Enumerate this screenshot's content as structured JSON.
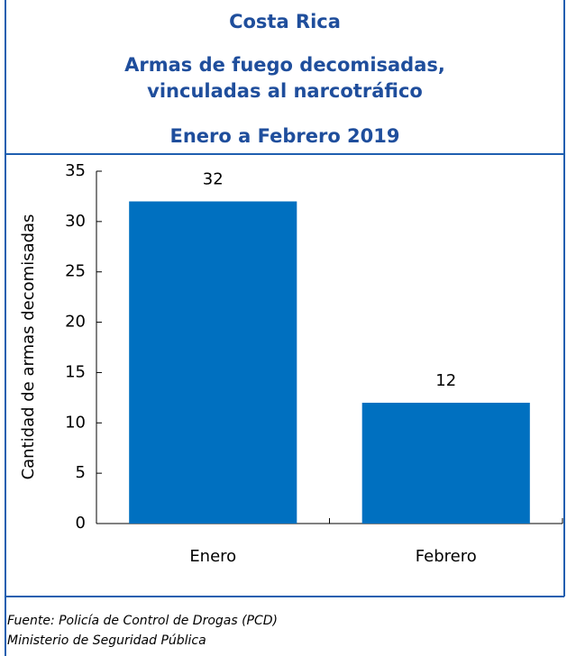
{
  "chart_data": {
    "type": "bar",
    "title": "Costa Rica",
    "subtitle": [
      "Armas de fuego decomisadas,",
      "vinculadas al narcotráfico",
      "Enero a Febrero 2019"
    ],
    "y_label": "Cantidad de armas decomisadas",
    "categories": [
      "Enero",
      "Febrero"
    ],
    "values": [
      32,
      12
    ],
    "color": "#0070c0",
    "ylim": [
      0,
      35
    ],
    "yticks": [
      0,
      5,
      10,
      15,
      20,
      25,
      30,
      35
    ],
    "grid": false,
    "source": [
      "Fuente: Policía de Control de Drogas (PCD)",
      "Ministerio de Seguridad Pública"
    ]
  }
}
